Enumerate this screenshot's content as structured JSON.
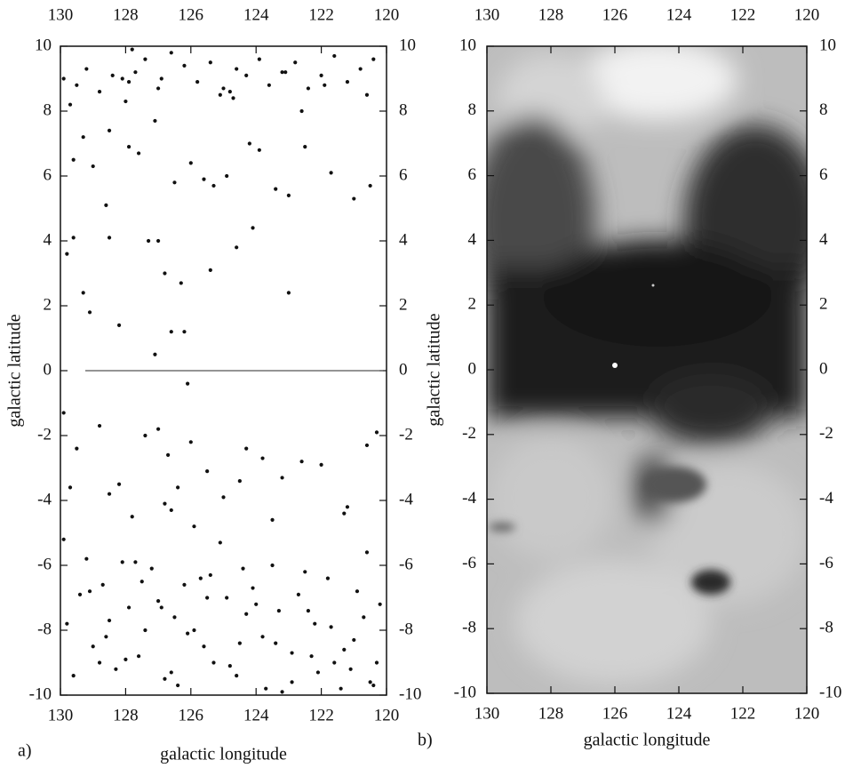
{
  "chart_data": [
    {
      "type": "scatter",
      "label": "a)",
      "xlabel": "galactic longitude",
      "ylabel": "galactic latitude",
      "color": "#111111",
      "xlim": [
        130,
        120
      ],
      "ylim": [
        -10,
        10
      ],
      "xticks": [
        130,
        128,
        126,
        124,
        122,
        120
      ],
      "yticks": [
        -10,
        -8,
        -6,
        -4,
        -2,
        0,
        2,
        4,
        6,
        8,
        10
      ],
      "x": [
        129.9,
        129.5,
        129.2,
        128.8,
        128.4,
        128.1,
        127.9,
        127.7,
        127.4,
        127.0,
        126.6,
        126.2,
        125.8,
        125.4,
        125.1,
        124.8,
        124.6,
        124.3,
        123.9,
        123.6,
        123.2,
        122.8,
        122.4,
        122.0,
        121.6,
        121.2,
        120.8,
        120.4,
        129.7,
        128.0,
        127.8,
        126.9,
        125.0,
        124.7,
        123.1,
        122.6,
        121.9,
        120.6,
        129.6,
        129.0,
        128.5,
        127.9,
        127.6,
        127.1,
        126.5,
        126.0,
        125.6,
        125.3,
        124.9,
        124.2,
        123.9,
        123.4,
        123.0,
        122.5,
        121.7,
        121.0,
        120.5,
        129.3,
        129.8,
        129.6,
        128.6,
        128.5,
        127.3,
        127.0,
        126.8,
        126.3,
        125.4,
        124.6,
        124.1,
        123.0,
        129.3,
        129.1,
        128.2,
        127.1,
        126.6,
        126.2,
        126.1,
        129.9,
        129.5,
        128.8,
        128.2,
        127.4,
        127.0,
        126.7,
        126.4,
        126.0,
        125.5,
        125.0,
        124.3,
        123.8,
        123.2,
        122.6,
        122.0,
        121.2,
        120.6,
        120.3,
        129.7,
        128.5,
        127.8,
        126.8,
        126.6,
        125.9,
        124.5,
        123.5,
        121.3,
        129.8,
        129.4,
        129.0,
        128.7,
        128.3,
        127.9,
        127.6,
        127.2,
        126.8,
        126.5,
        126.1,
        125.7,
        125.3,
        124.9,
        124.5,
        124.1,
        123.7,
        123.3,
        122.9,
        122.5,
        122.1,
        121.7,
        121.3,
        120.9,
        120.5,
        120.2,
        129.6,
        129.1,
        128.5,
        128.0,
        127.5,
        127.0,
        126.4,
        125.9,
        125.4,
        124.8,
        124.3,
        123.8,
        123.2,
        122.7,
        122.2,
        121.6,
        121.0,
        120.4,
        129.2,
        128.8,
        128.1,
        127.4,
        126.9,
        126.2,
        125.6,
        125.1,
        124.6,
        124.0,
        123.5,
        122.9,
        122.3,
        121.8,
        121.1,
        120.7,
        120.3,
        129.9,
        128.6,
        127.7,
        126.6,
        125.5,
        124.4,
        123.4,
        122.4,
        121.4,
        120.6
      ],
      "values": [
        9.0,
        8.8,
        9.3,
        8.6,
        9.1,
        9.0,
        8.9,
        9.2,
        9.6,
        8.7,
        9.8,
        9.4,
        8.9,
        9.5,
        8.5,
        8.6,
        9.3,
        9.1,
        9.6,
        8.8,
        9.2,
        9.5,
        8.7,
        9.1,
        9.7,
        8.9,
        9.3,
        9.6,
        8.2,
        8.3,
        9.9,
        9.0,
        8.7,
        8.4,
        9.2,
        8.0,
        8.8,
        8.5,
        6.5,
        6.3,
        7.4,
        6.9,
        6.7,
        7.7,
        5.8,
        6.4,
        5.9,
        5.7,
        6.0,
        7.0,
        6.8,
        5.6,
        5.4,
        6.9,
        6.1,
        5.3,
        5.7,
        7.2,
        3.6,
        4.1,
        5.1,
        4.1,
        4.0,
        4.0,
        3.0,
        2.7,
        3.1,
        3.8,
        4.4,
        2.4,
        2.4,
        1.8,
        1.4,
        0.5,
        1.2,
        1.2,
        -0.4,
        -1.3,
        -2.4,
        -1.7,
        -3.5,
        -2.0,
        -1.8,
        -2.6,
        -3.6,
        -2.2,
        -3.1,
        -3.9,
        -2.4,
        -2.7,
        -3.3,
        -2.8,
        -2.9,
        -4.2,
        -2.3,
        -1.9,
        -3.6,
        -3.8,
        -4.5,
        -4.1,
        -4.3,
        -4.8,
        -3.4,
        -4.6,
        -4.4,
        -7.8,
        -6.9,
        -8.5,
        -6.6,
        -9.2,
        -7.3,
        -8.8,
        -6.1,
        -9.5,
        -7.6,
        -8.1,
        -6.4,
        -9.0,
        -7.0,
        -8.4,
        -6.7,
        -9.8,
        -7.4,
        -8.7,
        -6.2,
        -9.3,
        -7.9,
        -8.6,
        -6.8,
        -9.6,
        -7.2,
        -9.4,
        -6.8,
        -7.7,
        -8.9,
        -6.5,
        -7.1,
        -9.7,
        -8.0,
        -6.3,
        -9.1,
        -7.5,
        -8.2,
        -9.9,
        -6.9,
        -7.8,
        -9.0,
        -8.3,
        -9.7,
        -5.8,
        -9.0,
        -5.9,
        -8.0,
        -7.3,
        -6.6,
        -8.5,
        -5.3,
        -9.4,
        -7.2,
        -6.0,
        -9.6,
        -8.8,
        -6.4,
        -9.2,
        -7.6,
        -9.0,
        -5.2,
        -8.2,
        -5.9,
        -9.3,
        -7.0,
        -6.1,
        -8.4,
        -7.4,
        -9.8,
        -5.6
      ]
    },
    {
      "type": "image",
      "label": "b)",
      "xlabel": "galactic longitude",
      "ylabel": "galactic latitude",
      "xlim": [
        130,
        120
      ],
      "ylim": [
        -10,
        10
      ],
      "xticks": [
        130,
        128,
        126,
        124,
        122,
        120
      ],
      "yticks": [
        -10,
        -8,
        -6,
        -4,
        -2,
        0,
        2,
        4,
        6,
        8,
        10
      ]
    }
  ]
}
